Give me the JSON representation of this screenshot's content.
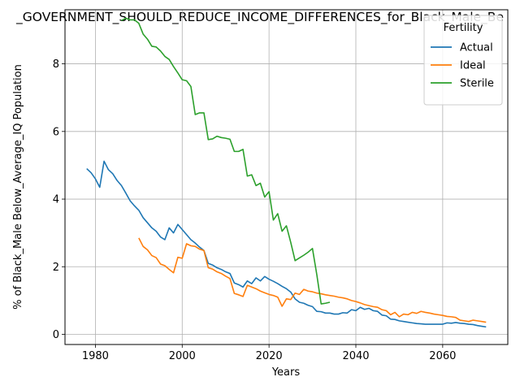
{
  "chart_data": {
    "type": "line",
    "title": "_GOVERNMENT_SHOULD_REDUCE_INCOME_DIFFERENCES_for_Black_Male_Be",
    "xlabel": "Years",
    "ylabel": "% of Black_Male Below_Average_IQ Population",
    "xlim": [
      1973,
      2075
    ],
    "ylim": [
      -0.3,
      9.6
    ],
    "xticks": [
      1980,
      2000,
      2020,
      2040,
      2060
    ],
    "yticks": [
      0,
      2,
      4,
      6,
      8
    ],
    "grid": true,
    "legend": {
      "title": "Fertility",
      "position": "top-right"
    },
    "series": [
      {
        "name": "Actual",
        "color": "#1f77b4",
        "x": [
          1978,
          1979,
          1980,
          1981,
          1982,
          1983,
          1984,
          1985,
          1986,
          1987,
          1988,
          1989,
          1990,
          1991,
          1992,
          1993,
          1994,
          1995,
          1996,
          1997,
          1998,
          1999,
          2000,
          2001,
          2002,
          2003,
          2004,
          2005,
          2006,
          2007,
          2008,
          2009,
          2010,
          2011,
          2012,
          2013,
          2014,
          2015,
          2016,
          2017,
          2018,
          2019,
          2020,
          2021,
          2022,
          2023,
          2024,
          2025,
          2026,
          2027,
          2028,
          2029,
          2030,
          2031,
          2032,
          2033,
          2034,
          2035,
          2036,
          2037,
          2038,
          2039,
          2040,
          2041,
          2042,
          2043,
          2044,
          2045,
          2046,
          2047,
          2048,
          2049,
          2050,
          2051,
          2052,
          2053,
          2054,
          2055,
          2056,
          2057,
          2058,
          2059,
          2060,
          2061,
          2062,
          2063,
          2064,
          2065,
          2066,
          2067,
          2068,
          2069,
          2070
        ],
        "y": [
          4.9,
          4.78,
          4.6,
          4.35,
          5.12,
          4.87,
          4.75,
          4.55,
          4.4,
          4.18,
          3.95,
          3.8,
          3.67,
          3.45,
          3.3,
          3.15,
          3.05,
          2.88,
          2.8,
          3.15,
          3.0,
          3.25,
          3.1,
          2.95,
          2.8,
          2.7,
          2.58,
          2.48,
          2.1,
          2.05,
          1.97,
          1.92,
          1.85,
          1.8,
          1.52,
          1.47,
          1.4,
          1.58,
          1.5,
          1.67,
          1.58,
          1.71,
          1.63,
          1.57,
          1.5,
          1.42,
          1.35,
          1.25,
          1.05,
          0.95,
          0.92,
          0.86,
          0.82,
          0.68,
          0.67,
          0.63,
          0.63,
          0.6,
          0.6,
          0.64,
          0.63,
          0.73,
          0.7,
          0.8,
          0.74,
          0.77,
          0.7,
          0.68,
          0.57,
          0.55,
          0.45,
          0.44,
          0.4,
          0.38,
          0.36,
          0.34,
          0.32,
          0.31,
          0.3,
          0.3,
          0.3,
          0.3,
          0.3,
          0.34,
          0.33,
          0.35,
          0.33,
          0.32,
          0.3,
          0.29,
          0.26,
          0.24,
          0.22
        ]
      },
      {
        "name": "Ideal",
        "color": "#ff7f0e",
        "x": [
          1990,
          1991,
          1992,
          1993,
          1994,
          1995,
          1996,
          1997,
          1998,
          1999,
          2000,
          2001,
          2002,
          2003,
          2004,
          2005,
          2006,
          2007,
          2008,
          2009,
          2010,
          2011,
          2012,
          2013,
          2014,
          2015,
          2016,
          2017,
          2018,
          2019,
          2020,
          2021,
          2022,
          2023,
          2024,
          2025,
          2026,
          2027,
          2028,
          2029,
          2030,
          2031,
          2032,
          2033,
          2034,
          2035,
          2036,
          2037,
          2038,
          2039,
          2040,
          2041,
          2042,
          2043,
          2044,
          2045,
          2046,
          2047,
          2048,
          2049,
          2050,
          2051,
          2052,
          2053,
          2054,
          2055,
          2056,
          2057,
          2058,
          2059,
          2060,
          2061,
          2062,
          2063,
          2064,
          2065,
          2066,
          2067,
          2068,
          2069,
          2070
        ],
        "y": [
          2.85,
          2.6,
          2.5,
          2.33,
          2.27,
          2.08,
          2.03,
          1.92,
          1.82,
          2.28,
          2.25,
          2.68,
          2.62,
          2.6,
          2.52,
          2.48,
          1.97,
          1.93,
          1.85,
          1.8,
          1.72,
          1.65,
          1.21,
          1.17,
          1.12,
          1.45,
          1.4,
          1.35,
          1.28,
          1.23,
          1.18,
          1.15,
          1.1,
          0.83,
          1.05,
          1.03,
          1.22,
          1.18,
          1.33,
          1.28,
          1.26,
          1.22,
          1.2,
          1.17,
          1.15,
          1.13,
          1.1,
          1.08,
          1.05,
          1.0,
          0.97,
          0.93,
          0.88,
          0.85,
          0.82,
          0.8,
          0.73,
          0.7,
          0.58,
          0.65,
          0.52,
          0.6,
          0.58,
          0.65,
          0.62,
          0.68,
          0.65,
          0.63,
          0.6,
          0.58,
          0.56,
          0.53,
          0.52,
          0.5,
          0.42,
          0.4,
          0.38,
          0.42,
          0.4,
          0.38,
          0.36
        ]
      },
      {
        "name": "Sterile",
        "color": "#2ca02c",
        "x": [
          1986,
          1987,
          1988,
          1989,
          1990,
          1991,
          1992,
          1993,
          1994,
          1995,
          1996,
          1997,
          1998,
          1999,
          2000,
          2001,
          2002,
          2003,
          2004,
          2005,
          2006,
          2007,
          2008,
          2009,
          2010,
          2011,
          2012,
          2013,
          2014,
          2015,
          2016,
          2017,
          2018,
          2019,
          2020,
          2021,
          2022,
          2023,
          2024,
          2025,
          2026,
          2027,
          2028,
          2029,
          2030,
          2031,
          2032,
          2033,
          2034
        ],
        "y": [
          9.28,
          9.35,
          9.3,
          9.3,
          9.2,
          8.88,
          8.73,
          8.52,
          8.5,
          8.38,
          8.22,
          8.13,
          7.92,
          7.73,
          7.53,
          7.5,
          7.33,
          6.5,
          6.55,
          6.55,
          5.76,
          5.78,
          5.86,
          5.82,
          5.8,
          5.77,
          5.41,
          5.41,
          5.47,
          4.68,
          4.72,
          4.4,
          4.47,
          4.06,
          4.22,
          3.38,
          3.57,
          3.05,
          3.21,
          2.72,
          2.18,
          2.26,
          2.34,
          2.43,
          2.54,
          1.77,
          0.9,
          0.92,
          0.95
        ]
      }
    ]
  }
}
